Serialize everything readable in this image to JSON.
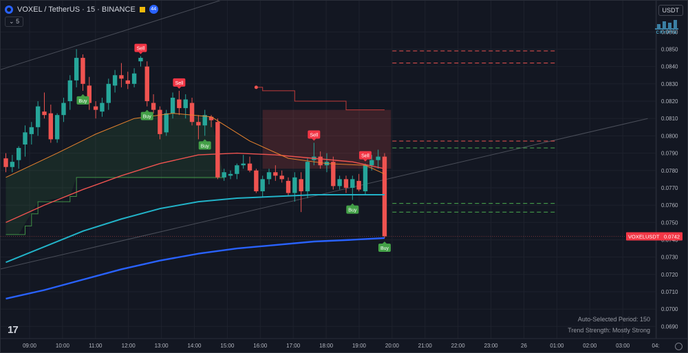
{
  "header": {
    "symbol": "VOXEL / TetherUS · 15 · BINANCE",
    "alert_count": "44",
    "indicator_count": "5"
  },
  "currency_button": "USDT",
  "logo_text": "CRYPTO",
  "current_price": {
    "label": "VOXELUSDT",
    "value": "0.0742"
  },
  "info": {
    "period": "Auto-Selected Period: 150",
    "trend": "Trend Strength: Mostly Strong"
  },
  "tv_logo": "17",
  "colors": {
    "up": "#26a69a",
    "down": "#ef5350",
    "ema_fast": "#e8832e",
    "ema_mid": "#ef5350",
    "ema_teal": "#22b3c8",
    "ema_blue": "#2962ff"
  },
  "chart_data": {
    "type": "candlestick",
    "symbol": "VOXEL/USDT",
    "timeframe": "15",
    "ylim": [
      0.0683,
      0.0878
    ],
    "y_ticks": [
      0.069,
      0.07,
      0.071,
      0.072,
      0.073,
      0.074,
      0.075,
      0.076,
      0.077,
      0.078,
      0.079,
      0.08,
      0.081,
      0.082,
      0.083,
      0.084,
      0.085,
      0.086
    ],
    "x_ticks": [
      "09:00",
      "10:00",
      "11:00",
      "12:00",
      "13:00",
      "14:00",
      "15:00",
      "16:00",
      "17:00",
      "18:00",
      "19:00",
      "20:00",
      "21:00",
      "22:00",
      "23:00",
      "26",
      "01:00",
      "02:00",
      "03:00",
      "04:"
    ],
    "candles": [
      [
        0.0787,
        0.079,
        0.0779,
        0.0782
      ],
      [
        0.0782,
        0.0789,
        0.0779,
        0.0785
      ],
      [
        0.0786,
        0.0794,
        0.0781,
        0.0793
      ],
      [
        0.0795,
        0.0806,
        0.0788,
        0.0802
      ],
      [
        0.0801,
        0.0808,
        0.0795,
        0.0805
      ],
      [
        0.0805,
        0.082,
        0.08,
        0.0817
      ],
      [
        0.0814,
        0.0825,
        0.081,
        0.0812
      ],
      [
        0.0813,
        0.0818,
        0.0796,
        0.0798
      ],
      [
        0.0798,
        0.0813,
        0.0796,
        0.0812
      ],
      [
        0.0812,
        0.0822,
        0.0808,
        0.0819
      ],
      [
        0.082,
        0.0835,
        0.0815,
        0.0832
      ],
      [
        0.0832,
        0.085,
        0.0828,
        0.0845
      ],
      [
        0.0845,
        0.0847,
        0.0826,
        0.083
      ],
      [
        0.0829,
        0.0834,
        0.0815,
        0.0819
      ],
      [
        0.0817,
        0.082,
        0.081,
        0.0815
      ],
      [
        0.0814,
        0.0822,
        0.0811,
        0.0819
      ],
      [
        0.0819,
        0.0833,
        0.0815,
        0.083
      ],
      [
        0.0829,
        0.0838,
        0.0825,
        0.0835
      ],
      [
        0.0835,
        0.0842,
        0.0828,
        0.0833
      ],
      [
        0.0832,
        0.0837,
        0.0827,
        0.083
      ],
      [
        0.083,
        0.0839,
        0.0828,
        0.0836
      ],
      [
        0.0843,
        0.0846,
        0.084,
        0.0845
      ],
      [
        0.084,
        0.0843,
        0.0817,
        0.082
      ],
      [
        0.0819,
        0.0824,
        0.0813,
        0.0815
      ],
      [
        0.0815,
        0.0817,
        0.0798,
        0.0801
      ],
      [
        0.0802,
        0.0815,
        0.08,
        0.0813
      ],
      [
        0.0813,
        0.0825,
        0.081,
        0.0822
      ],
      [
        0.0821,
        0.0826,
        0.0812,
        0.0816
      ],
      [
        0.0816,
        0.0824,
        0.081,
        0.0821
      ],
      [
        0.0819,
        0.0822,
        0.0806,
        0.0808
      ],
      [
        0.0808,
        0.0812,
        0.0798,
        0.0806
      ],
      [
        0.0806,
        0.0815,
        0.08,
        0.0812
      ],
      [
        0.0811,
        0.0812,
        0.0805,
        0.0809
      ],
      [
        0.0808,
        0.081,
        0.0775,
        0.0776
      ],
      [
        0.0776,
        0.0781,
        0.0774,
        0.0779
      ],
      [
        0.0777,
        0.078,
        0.0775,
        0.0778
      ],
      [
        0.0778,
        0.0784,
        0.0775,
        0.0783
      ],
      [
        0.0783,
        0.0789,
        0.0781,
        0.0784
      ],
      [
        0.0784,
        0.0788,
        0.0779,
        0.078
      ],
      [
        0.078,
        0.0781,
        0.0767,
        0.0768
      ],
      [
        0.0768,
        0.0777,
        0.0765,
        0.0775
      ],
      [
        0.0775,
        0.0781,
        0.0772,
        0.0779
      ],
      [
        0.0779,
        0.0783,
        0.0774,
        0.0777
      ],
      [
        0.0777,
        0.078,
        0.0773,
        0.0775
      ],
      [
        0.0774,
        0.0776,
        0.0765,
        0.0767
      ],
      [
        0.0767,
        0.0779,
        0.0762,
        0.0776
      ],
      [
        0.0775,
        0.0779,
        0.0756,
        0.0768
      ],
      [
        0.0768,
        0.0787,
        0.0764,
        0.0785
      ],
      [
        0.0786,
        0.0796,
        0.0783,
        0.0788
      ],
      [
        0.0788,
        0.0791,
        0.0781,
        0.0783
      ],
      [
        0.0783,
        0.079,
        0.0779,
        0.0785
      ],
      [
        0.0785,
        0.0788,
        0.0769,
        0.0771
      ],
      [
        0.0771,
        0.0777,
        0.0769,
        0.0775
      ],
      [
        0.0775,
        0.0777,
        0.0767,
        0.077
      ],
      [
        0.077,
        0.0777,
        0.0763,
        0.0775
      ],
      [
        0.0774,
        0.0778,
        0.0768,
        0.0769
      ],
      [
        0.0768,
        0.0784,
        0.0766,
        0.0783
      ],
      [
        0.0783,
        0.0789,
        0.078,
        0.0786
      ],
      [
        0.0786,
        0.0792,
        0.0781,
        0.0788
      ],
      [
        0.0788,
        0.079,
        0.0741,
        0.0742
      ]
    ],
    "ema_fast": [
      [
        0,
        0.0776
      ],
      [
        8,
        0.079
      ],
      [
        14,
        0.0801
      ],
      [
        20,
        0.081
      ],
      [
        26,
        0.0813
      ],
      [
        32,
        0.0811
      ],
      [
        38,
        0.0797
      ],
      [
        44,
        0.0787
      ],
      [
        50,
        0.0784
      ],
      [
        56,
        0.0783
      ],
      [
        59,
        0.0778
      ]
    ],
    "ema_mid": [
      [
        0,
        0.075
      ],
      [
        6,
        0.076
      ],
      [
        12,
        0.0769
      ],
      [
        18,
        0.0777
      ],
      [
        24,
        0.0784
      ],
      [
        30,
        0.0789
      ],
      [
        36,
        0.079
      ],
      [
        42,
        0.0789
      ],
      [
        48,
        0.0787
      ],
      [
        54,
        0.0785
      ],
      [
        59,
        0.0781
      ]
    ],
    "ema_teal": [
      [
        0,
        0.0727
      ],
      [
        6,
        0.0736
      ],
      [
        12,
        0.0745
      ],
      [
        18,
        0.0752
      ],
      [
        24,
        0.0758
      ],
      [
        30,
        0.0762
      ],
      [
        36,
        0.0764
      ],
      [
        42,
        0.0765
      ],
      [
        48,
        0.0766
      ],
      [
        54,
        0.0766
      ],
      [
        59,
        0.0766
      ]
    ],
    "ema_blue": [
      [
        0,
        0.0706
      ],
      [
        6,
        0.0711
      ],
      [
        12,
        0.0717
      ],
      [
        18,
        0.0723
      ],
      [
        24,
        0.0728
      ],
      [
        30,
        0.0732
      ],
      [
        36,
        0.0735
      ],
      [
        42,
        0.0737
      ],
      [
        48,
        0.0739
      ],
      [
        54,
        0.074
      ],
      [
        59,
        0.0741
      ]
    ],
    "support_step": [
      [
        0,
        0.0743
      ],
      [
        2,
        0.0743
      ],
      [
        3,
        0.0748
      ],
      [
        4,
        0.0755
      ],
      [
        5,
        0.0762
      ],
      [
        9,
        0.0762
      ],
      [
        10,
        0.0765
      ],
      [
        11,
        0.0776
      ],
      [
        33,
        0.0776
      ],
      [
        34,
        0.0775
      ]
    ],
    "resist_step": [
      [
        39,
        0.0828
      ],
      [
        40,
        0.0826
      ],
      [
        44,
        0.0826
      ],
      [
        45,
        0.082
      ],
      [
        52,
        0.082
      ],
      [
        53,
        0.0815
      ],
      [
        59,
        0.0815
      ]
    ],
    "channel_upper": [
      [
        -1,
        0.0838
      ],
      [
        41,
        0.0887
      ]
    ],
    "channel_lower": [
      [
        -1,
        0.0723
      ],
      [
        100,
        0.081
      ]
    ],
    "levels": [
      {
        "price": 0.0849,
        "color": "#ef5350"
      },
      {
        "price": 0.0842,
        "color": "#ef5350"
      },
      {
        "price": 0.0797,
        "color": "#ef5350"
      },
      {
        "price": 0.0793,
        "color": "#4caf50"
      },
      {
        "price": 0.0761,
        "color": "#4caf50"
      },
      {
        "price": 0.0756,
        "color": "#4caf50"
      }
    ],
    "signals": [
      {
        "type": "Buy",
        "i": 12
      },
      {
        "type": "Sell",
        "i": 21
      },
      {
        "type": "Buy",
        "i": 22
      },
      {
        "type": "Sell",
        "i": 27
      },
      {
        "type": "Buy",
        "i": 31
      },
      {
        "type": "Sell",
        "i": 48
      },
      {
        "type": "Buy",
        "i": 54
      },
      {
        "type": "Sell",
        "i": 56
      },
      {
        "type": "Buy",
        "i": 59
      }
    ]
  }
}
